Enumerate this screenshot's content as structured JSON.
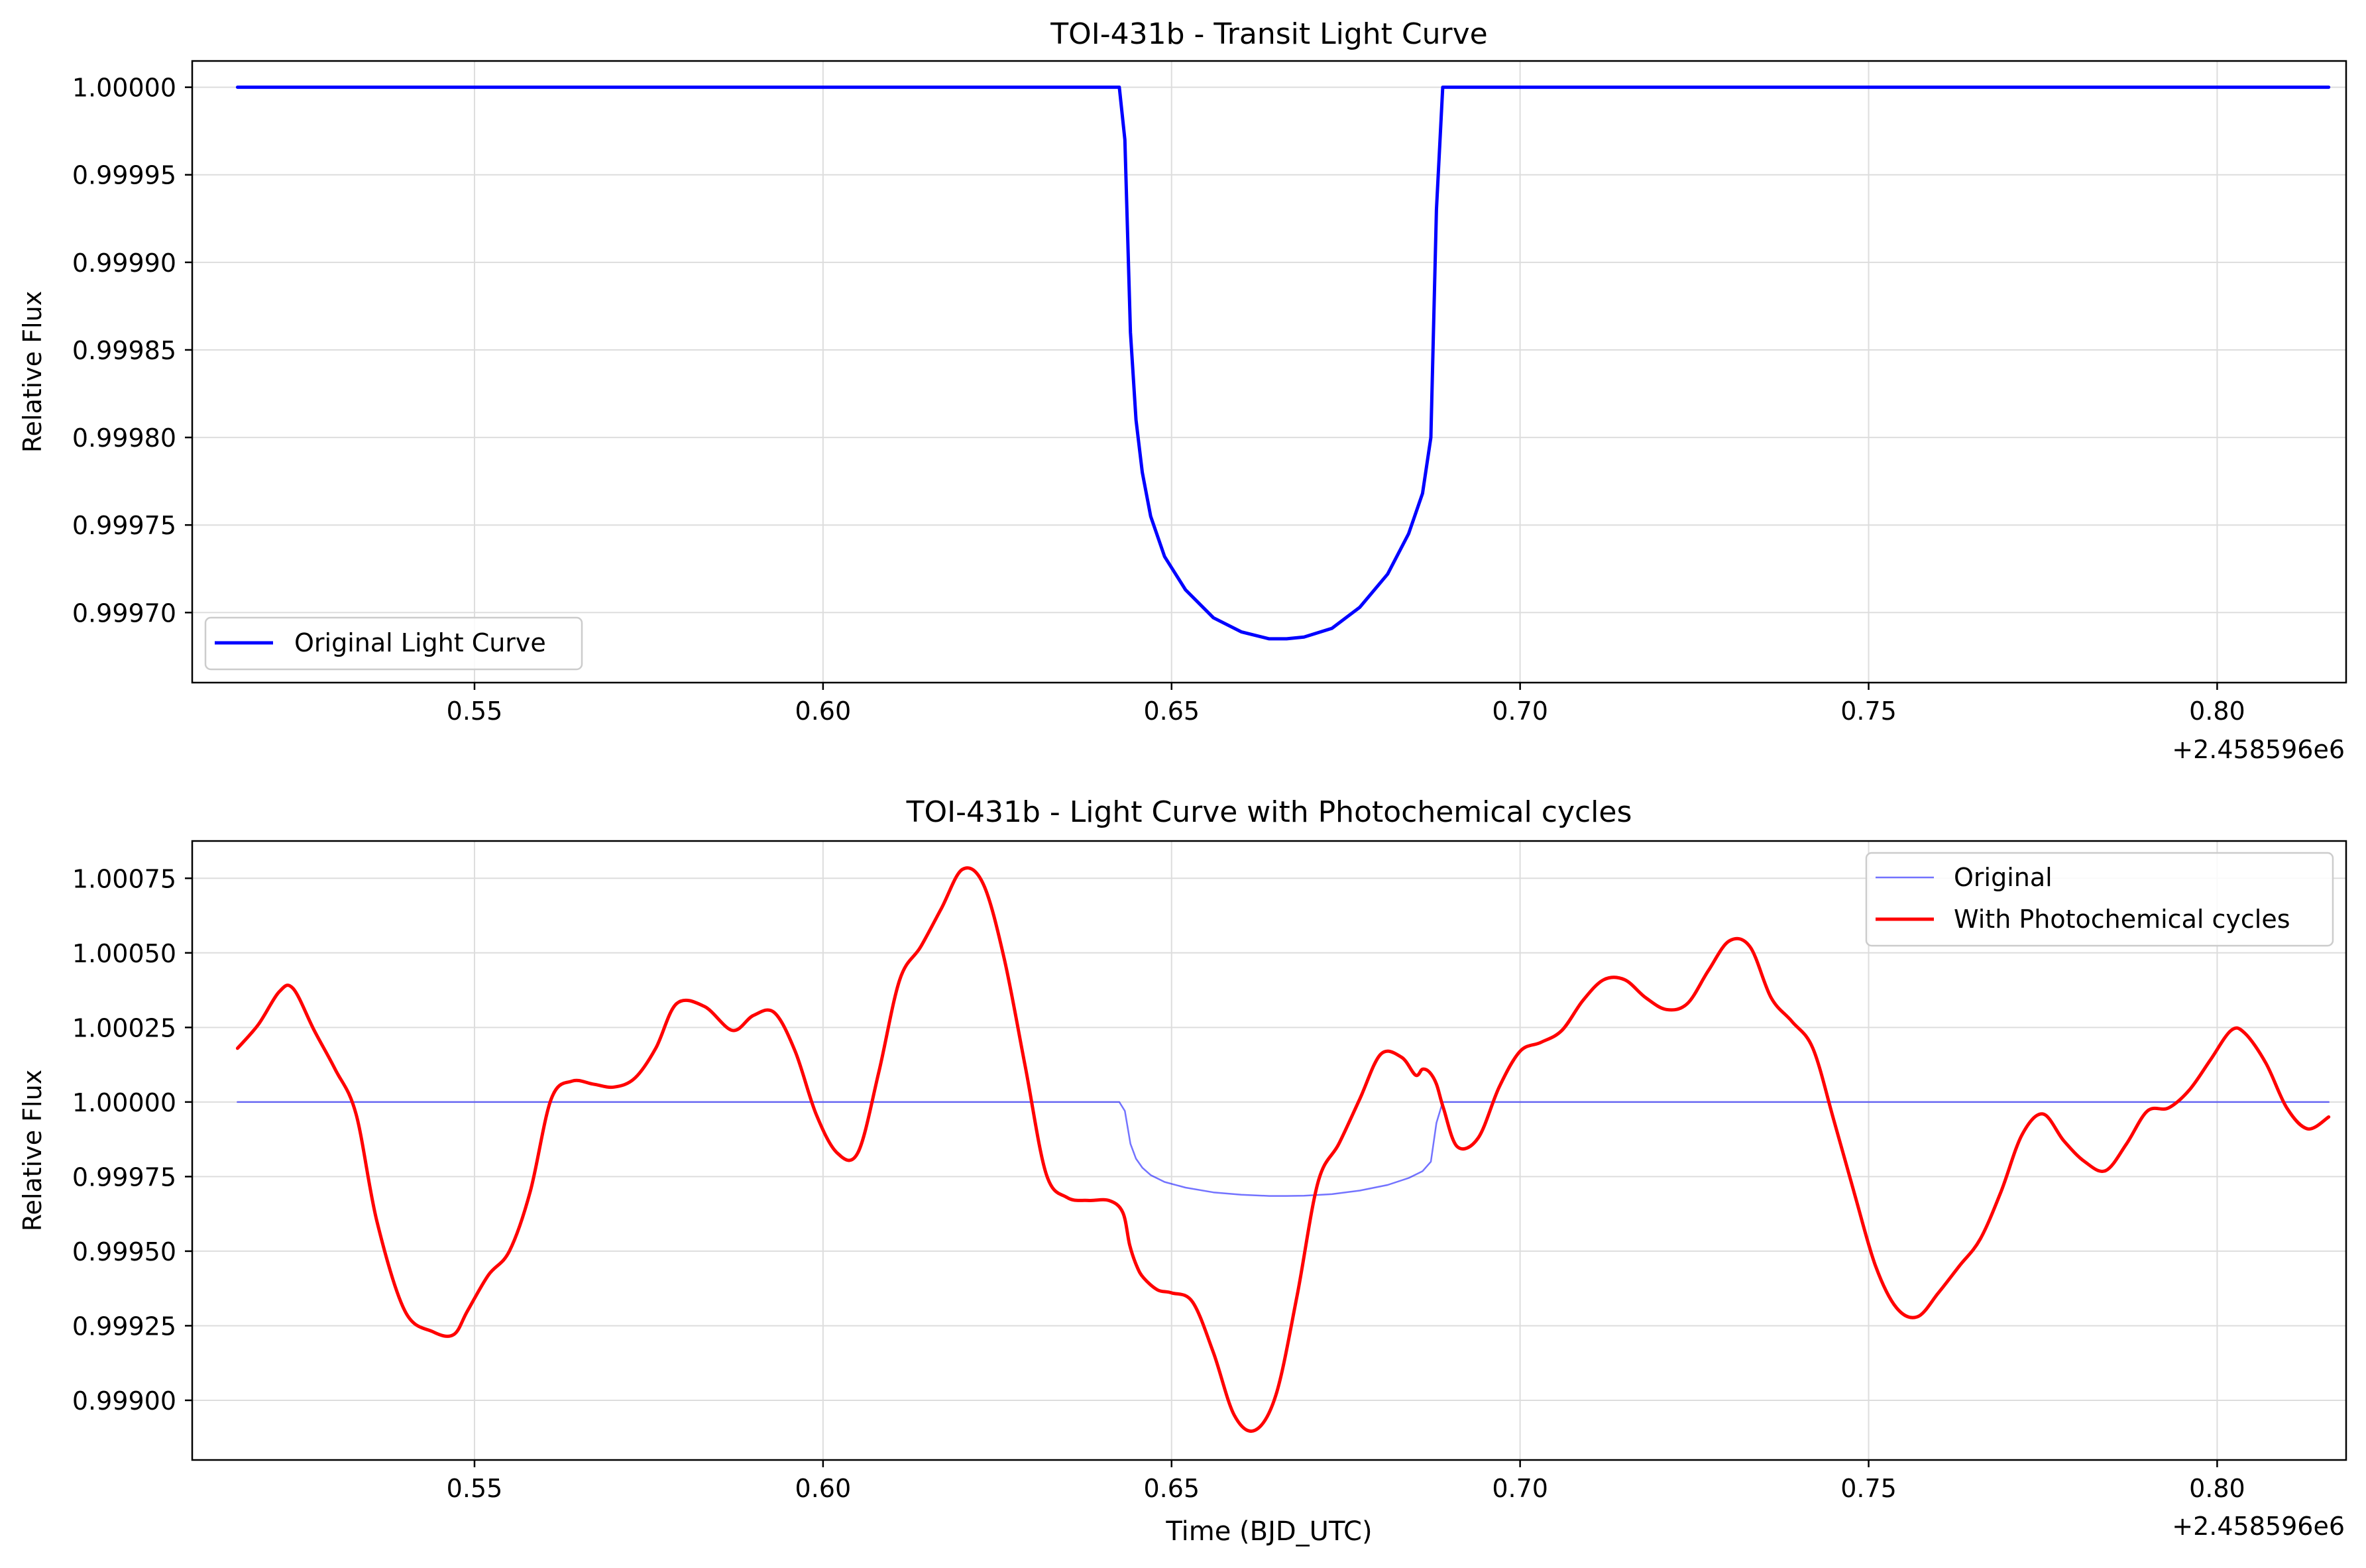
{
  "chart_data": [
    {
      "type": "line",
      "title": "TOI-431b - Transit Light Curve",
      "xlabel": "",
      "ylabel": "Relative Flux",
      "x_offset_label": "+2.458596e6",
      "xlim": [
        0.5095,
        0.8185
      ],
      "ylim": [
        0.99966,
        1.000015
      ],
      "xticks": [
        0.55,
        0.6,
        0.65,
        0.7,
        0.75,
        0.8
      ],
      "xtick_labels": [
        "0.55",
        "0.60",
        "0.65",
        "0.70",
        "0.75",
        "0.80"
      ],
      "yticks": [
        0.9997,
        0.99975,
        0.9998,
        0.99985,
        0.9999,
        0.99995,
        1.0
      ],
      "ytick_labels": [
        "0.99970",
        "0.99975",
        "0.99980",
        "0.99985",
        "0.99990",
        "0.99995",
        "1.00000"
      ],
      "grid": true,
      "legend": {
        "position": "lower-left",
        "entries": [
          "Original Light Curve"
        ]
      },
      "series": [
        {
          "name": "Original Light Curve",
          "color": "#0000ff",
          "x": [
            0.516,
            0.53,
            0.55,
            0.57,
            0.59,
            0.61,
            0.63,
            0.6425,
            0.6433,
            0.6441,
            0.6449,
            0.6458,
            0.647,
            0.649,
            0.652,
            0.656,
            0.66,
            0.664,
            0.6665,
            0.669,
            0.673,
            0.677,
            0.681,
            0.684,
            0.686,
            0.6872,
            0.688,
            0.6889,
            0.69,
            0.7,
            0.72,
            0.74,
            0.76,
            0.78,
            0.8,
            0.816
          ],
          "y": [
            1.0,
            1.0,
            1.0,
            1.0,
            1.0,
            1.0,
            1.0,
            1.0,
            0.99997,
            0.99986,
            0.99981,
            0.99978,
            0.999755,
            0.999732,
            0.999713,
            0.999697,
            0.999689,
            0.999685,
            0.999685,
            0.999686,
            0.999691,
            0.999703,
            0.999722,
            0.999745,
            0.999768,
            0.9998,
            0.99993,
            1.0,
            1.0,
            1.0,
            1.0,
            1.0,
            1.0,
            1.0,
            1.0,
            1.0
          ]
        }
      ]
    },
    {
      "type": "line",
      "title": "TOI-431b - Light Curve with Photochemical cycles",
      "xlabel": "Time (BJD_UTC)",
      "ylabel": "Relative Flux",
      "x_offset_label": "+2.458596e6",
      "xlim": [
        0.5095,
        0.8185
      ],
      "ylim": [
        0.9988,
        1.000875
      ],
      "xticks": [
        0.55,
        0.6,
        0.65,
        0.7,
        0.75,
        0.8
      ],
      "xtick_labels": [
        "0.55",
        "0.60",
        "0.65",
        "0.70",
        "0.75",
        "0.80"
      ],
      "yticks": [
        0.999,
        0.99925,
        0.9995,
        0.99975,
        1.0,
        1.00025,
        1.0005,
        1.00075
      ],
      "ytick_labels": [
        "0.99900",
        "0.99925",
        "0.99950",
        "0.99975",
        "1.00000",
        "1.00025",
        "1.00050",
        "1.00075"
      ],
      "grid": true,
      "legend": {
        "position": "upper-right",
        "entries": [
          "Original",
          "With Photochemical cycles"
        ]
      },
      "series": [
        {
          "name": "Original",
          "color": "#0000ff",
          "x": [
            0.516,
            0.53,
            0.55,
            0.57,
            0.59,
            0.61,
            0.63,
            0.6425,
            0.6433,
            0.6441,
            0.6449,
            0.6458,
            0.647,
            0.649,
            0.652,
            0.656,
            0.66,
            0.664,
            0.6665,
            0.669,
            0.673,
            0.677,
            0.681,
            0.684,
            0.686,
            0.6872,
            0.688,
            0.6889,
            0.69,
            0.7,
            0.72,
            0.74,
            0.76,
            0.78,
            0.8,
            0.816
          ],
          "y": [
            1.0,
            1.0,
            1.0,
            1.0,
            1.0,
            1.0,
            1.0,
            1.0,
            0.99997,
            0.99986,
            0.99981,
            0.99978,
            0.999755,
            0.999732,
            0.999713,
            0.999697,
            0.999689,
            0.999685,
            0.999685,
            0.999686,
            0.999691,
            0.999703,
            0.999722,
            0.999745,
            0.999768,
            0.9998,
            0.99993,
            1.0,
            1.0,
            1.0,
            1.0,
            1.0,
            1.0,
            1.0,
            1.0,
            1.0
          ]
        },
        {
          "name": "With Photochemical cycles",
          "color": "#ff0000",
          "x": [
            0.516,
            0.519,
            0.522,
            0.524,
            0.527,
            0.53,
            0.533,
            0.536,
            0.54,
            0.544,
            0.547,
            0.549,
            0.552,
            0.555,
            0.558,
            0.561,
            0.564,
            0.567,
            0.57,
            0.573,
            0.576,
            0.579,
            0.583,
            0.587,
            0.59,
            0.593,
            0.596,
            0.599,
            0.602,
            0.605,
            0.608,
            0.611,
            0.614,
            0.617,
            0.62,
            0.623,
            0.626,
            0.629,
            0.632,
            0.635,
            0.638,
            0.641,
            0.643,
            0.644,
            0.645,
            0.646,
            0.648,
            0.65,
            0.653,
            0.656,
            0.659,
            0.662,
            0.665,
            0.668,
            0.671,
            0.674,
            0.677,
            0.68,
            0.683,
            0.685,
            0.686,
            0.687,
            0.688,
            0.689,
            0.691,
            0.694,
            0.697,
            0.7,
            0.703,
            0.706,
            0.709,
            0.712,
            0.715,
            0.718,
            0.721,
            0.724,
            0.727,
            0.73,
            0.733,
            0.736,
            0.739,
            0.742,
            0.745,
            0.748,
            0.751,
            0.754,
            0.757,
            0.76,
            0.763,
            0.766,
            0.769,
            0.772,
            0.775,
            0.778,
            0.781,
            0.784,
            0.787,
            0.79,
            0.793,
            0.796,
            0.799,
            0.802,
            0.804,
            0.807,
            0.81,
            0.813,
            0.816
          ],
          "y": [
            1.00018,
            1.00026,
            1.00037,
            1.00038,
            1.00024,
            1.00011,
            0.99996,
            0.9996,
            0.9993,
            0.99923,
            0.99922,
            0.9993,
            0.99942,
            0.9995,
            0.9997,
            1.00001,
            1.00007,
            1.00006,
            1.00005,
            1.00008,
            1.00018,
            1.00033,
            1.00032,
            1.00024,
            1.00029,
            1.0003,
            1.00017,
            0.99996,
            0.99983,
            0.99983,
            1.0001,
            1.00041,
            1.00052,
            1.00065,
            1.00078,
            1.00073,
            1.00048,
            1.00012,
            0.99976,
            0.99968,
            0.99967,
            0.99967,
            0.99963,
            0.99952,
            0.99945,
            0.99941,
            0.99937,
            0.99936,
            0.99933,
            0.99916,
            0.99895,
            0.9989,
            0.99902,
            0.99935,
            0.99973,
            0.99986,
            1.00001,
            1.00016,
            1.00015,
            1.00009,
            1.00011,
            1.0001,
            1.00006,
            0.99998,
            0.99985,
            0.99988,
            1.00005,
            1.00017,
            1.0002,
            1.00024,
            1.00034,
            1.00041,
            1.00041,
            1.00035,
            1.00031,
            1.00033,
            1.00044,
            1.00054,
            1.00052,
            1.00035,
            1.00027,
            1.00018,
            0.99994,
            0.99969,
            0.99945,
            0.99931,
            0.99928,
            0.99936,
            0.99945,
            0.99954,
            0.9997,
            0.99989,
            0.99996,
            0.99987,
            0.9998,
            0.99977,
            0.99986,
            0.99997,
            0.99998,
            1.00004,
            1.00014,
            1.00024,
            1.00023,
            1.00013,
            0.99998,
            0.99991,
            0.99995
          ]
        }
      ]
    }
  ]
}
